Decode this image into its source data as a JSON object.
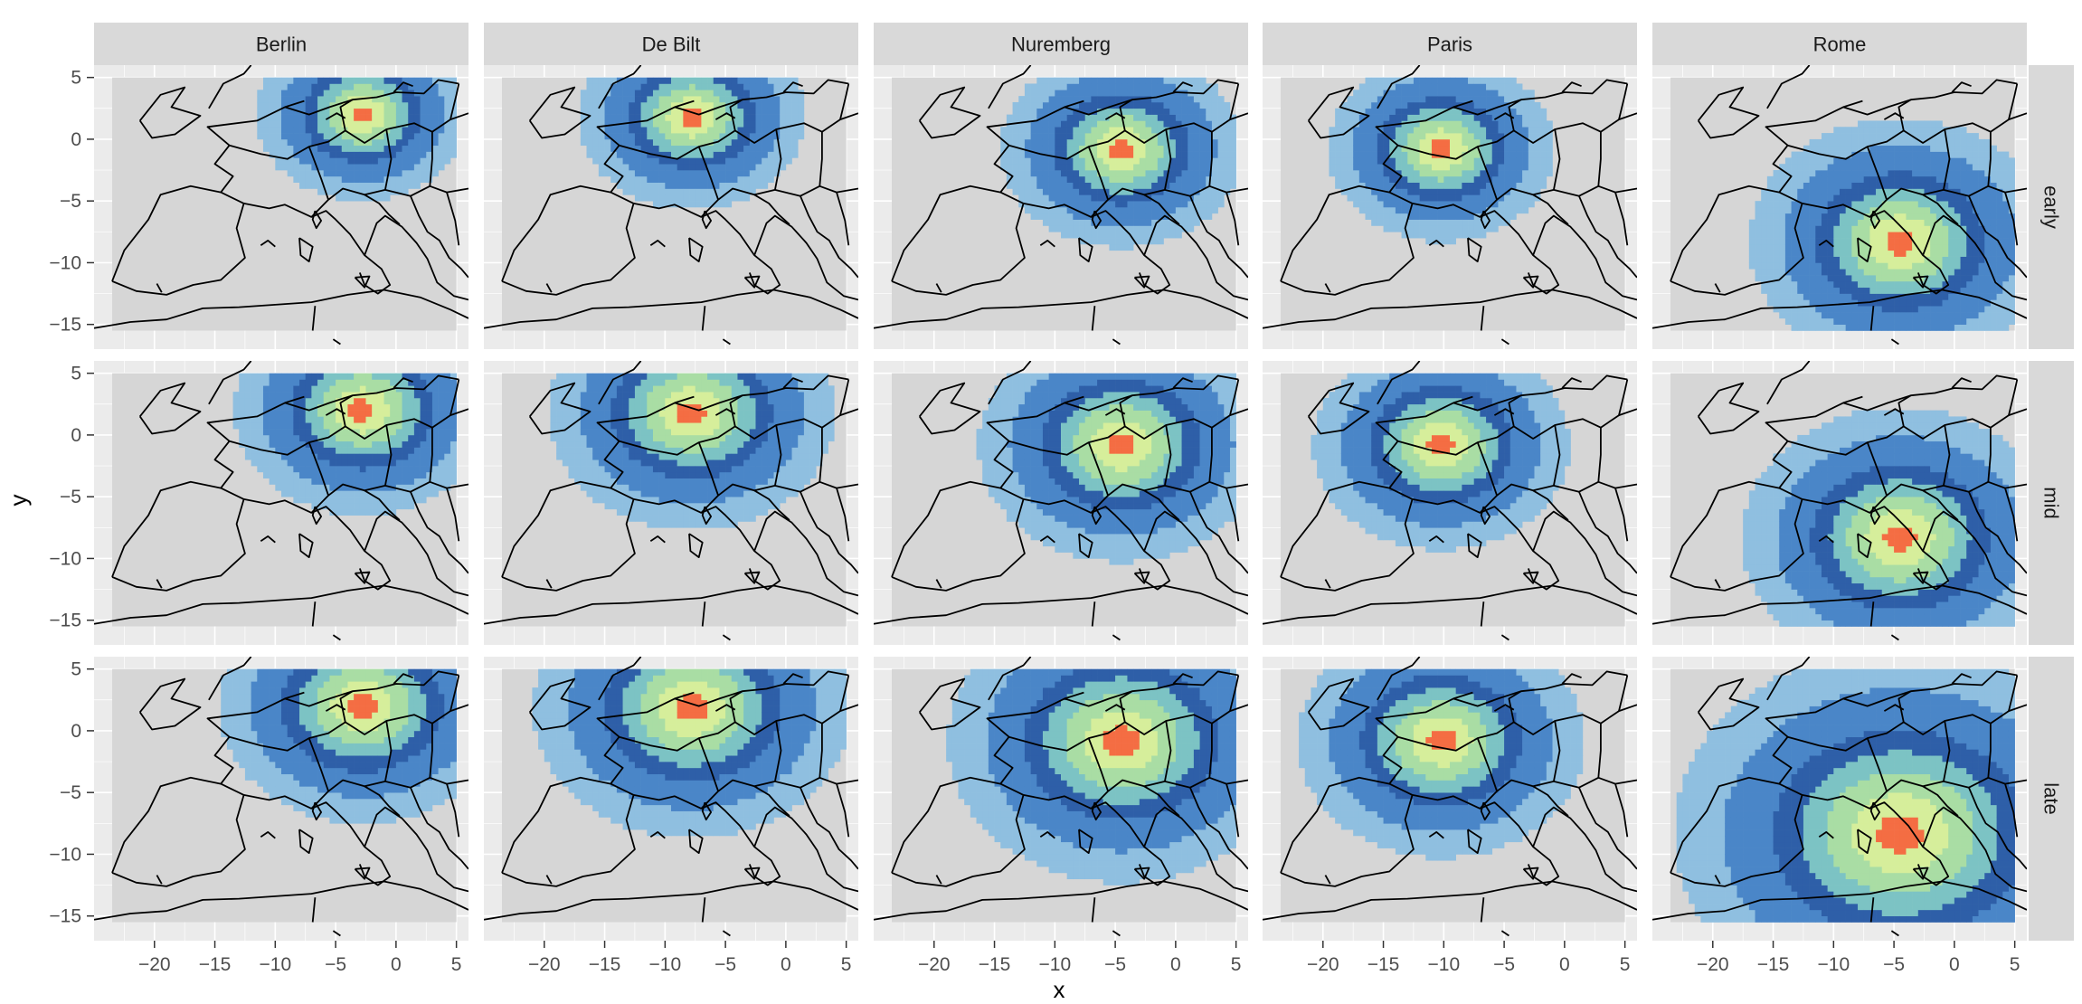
{
  "chart_data": {
    "type": "heatmap",
    "facet_cols": [
      "Berlin",
      "De Bilt",
      "Nuremberg",
      "Paris",
      "Rome"
    ],
    "facet_rows": [
      "early",
      "mid",
      "late"
    ],
    "xlabel": "x",
    "ylabel": "y",
    "xlim": [
      -25,
      6
    ],
    "ylim": [
      -17,
      6
    ],
    "x_ticks": [
      -20,
      -15,
      -10,
      -5,
      0,
      5
    ],
    "y_ticks": [
      5,
      0,
      -5,
      -10,
      -15
    ],
    "x_tick_labels": [
      "−20",
      "−15",
      "−10",
      "−5",
      "0",
      "5"
    ],
    "y_tick_labels": [
      "5",
      "0",
      "−5",
      "−10",
      "−15"
    ],
    "grid": true,
    "legend": "none",
    "colors": {
      "panel_bg": "#ebebeb",
      "strip_bg": "#d9d9d9",
      "gridline": "#ffffff",
      "map_field": "#d6d6d6",
      "outline": "#000000",
      "fill_levels": [
        "#8fbfe0",
        "#4a86c8",
        "#2e5fa8",
        "#7cc3c4",
        "#a9dda4",
        "#d6ee9b",
        "#f46d43"
      ]
    },
    "centers": {
      "Berlin": [
        -2.8,
        2.0
      ],
      "De Bilt": [
        -7.8,
        1.8
      ],
      "Nuremberg": [
        -4.5,
        -0.8
      ],
      "Paris": [
        -10.2,
        -0.8
      ],
      "Rome": [
        -4.5,
        -8.3
      ]
    },
    "spread": {
      "early": {
        "Berlin": 7.0,
        "De Bilt": 7.5,
        "Nuremberg": 8.0,
        "Paris": 7.5,
        "Rome": 10.0
      },
      "mid": {
        "Berlin": 8.5,
        "De Bilt": 9.5,
        "Nuremberg": 9.5,
        "Paris": 8.5,
        "Rome": 10.5
      },
      "late": {
        "Berlin": 9.5,
        "De Bilt": 10.5,
        "Nuremberg": 11.5,
        "Paris": 9.5,
        "Rome": 15.0
      }
    }
  }
}
